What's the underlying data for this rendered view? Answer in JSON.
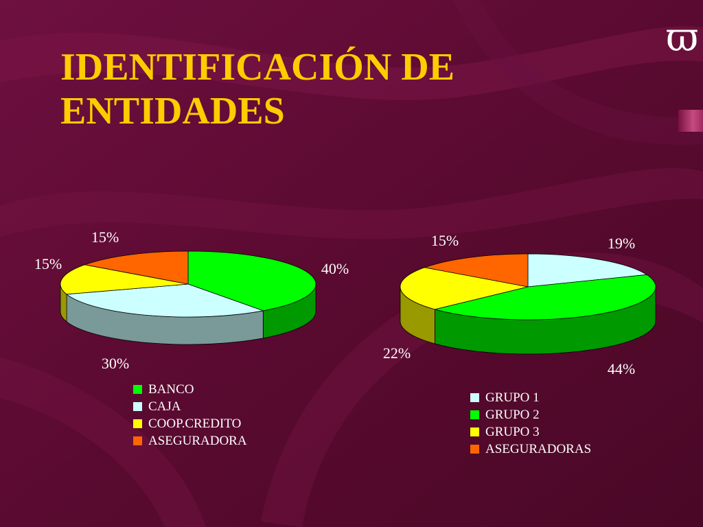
{
  "title": {
    "line1": "IDENTIFICACIÓN DE",
    "line2": "ENTIDADES"
  },
  "corner_glyph": "ϖ",
  "colors": {
    "background": "#5a0a30",
    "title": "#ffcc00",
    "label": "#ffffff"
  },
  "chart_data": [
    {
      "type": "pie",
      "style": "3d",
      "categories": [
        "BANCO",
        "CAJA",
        "COOP.CREDITO",
        "ASEGURADORA"
      ],
      "values": [
        40,
        30,
        15,
        15
      ],
      "labels": [
        "40%",
        "30%",
        "15%",
        "15%"
      ],
      "colors": [
        "#00ff00",
        "#ccffff",
        "#ffff00",
        "#ff6600"
      ],
      "legend_position": "bottom"
    },
    {
      "type": "pie",
      "style": "3d",
      "categories": [
        "GRUPO 1",
        "GRUPO 2",
        "GRUPO 3",
        "ASEGURADORAS"
      ],
      "values": [
        19,
        44,
        22,
        15
      ],
      "labels": [
        "19%",
        "44%",
        "22%",
        "15%"
      ],
      "colors": [
        "#ccffff",
        "#00ff00",
        "#ffff00",
        "#ff6600"
      ],
      "legend_position": "bottom"
    }
  ]
}
